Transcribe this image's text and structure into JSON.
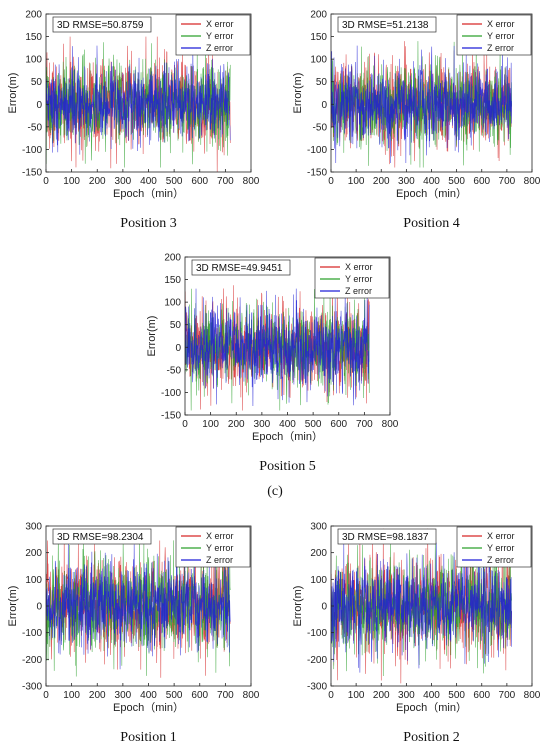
{
  "figure": {
    "label": "(c)"
  },
  "chart_data": [
    {
      "type": "line",
      "caption": "Position 3",
      "rmse_label": "3D RMSE=50.8759",
      "xlabel": "Epoch（min）",
      "ylabel": "Error(m)",
      "xlim": [
        0,
        800
      ],
      "ylim": [
        -150,
        200
      ],
      "xticks": [
        "0",
        "100",
        "200",
        "300",
        "400",
        "500",
        "600",
        "700",
        "800"
      ],
      "yticks": [
        "-150",
        "-100",
        "-50",
        "0",
        "50",
        "100",
        "150",
        "200"
      ],
      "legend_position": "top-right",
      "series": [
        {
          "name": "X error",
          "color": "#d62728",
          "amplitude": 50,
          "peak": 150,
          "points": 720
        },
        {
          "name": "Y error",
          "color": "#2ca02c",
          "amplitude": 50,
          "peak": 140,
          "points": 720
        },
        {
          "name": "Z error",
          "color": "#1f1fd6",
          "amplitude": 45,
          "peak": 130,
          "points": 720
        }
      ]
    },
    {
      "type": "line",
      "caption": "Position 4",
      "rmse_label": "3D RMSE=51.2138",
      "xlabel": "Epoch（min）",
      "ylabel": "Error(m)",
      "xlim": [
        0,
        800
      ],
      "ylim": [
        -150,
        200
      ],
      "xticks": [
        "0",
        "100",
        "200",
        "300",
        "400",
        "500",
        "600",
        "700",
        "800"
      ],
      "yticks": [
        "-150",
        "-100",
        "-50",
        "0",
        "50",
        "100",
        "150",
        "200"
      ],
      "legend_position": "top-right",
      "series": [
        {
          "name": "X error",
          "color": "#d62728",
          "amplitude": 50,
          "peak": 140,
          "points": 720
        },
        {
          "name": "Y error",
          "color": "#2ca02c",
          "amplitude": 50,
          "peak": 140,
          "points": 720
        },
        {
          "name": "Z error",
          "color": "#1f1fd6",
          "amplitude": 45,
          "peak": 130,
          "points": 720
        }
      ]
    },
    {
      "type": "line",
      "caption": "Position 5",
      "rmse_label": "3D RMSE=49.9451",
      "xlabel": "Epoch（min）",
      "ylabel": "Error(m)",
      "xlim": [
        0,
        800
      ],
      "ylim": [
        -150,
        200
      ],
      "xticks": [
        "0",
        "100",
        "200",
        "300",
        "400",
        "500",
        "600",
        "700",
        "800"
      ],
      "yticks": [
        "-150",
        "-100",
        "-50",
        "0",
        "50",
        "100",
        "150",
        "200"
      ],
      "legend_position": "top-right",
      "series": [
        {
          "name": "X error",
          "color": "#d62728",
          "amplitude": 48,
          "peak": 140,
          "points": 720
        },
        {
          "name": "Y error",
          "color": "#2ca02c",
          "amplitude": 48,
          "peak": 140,
          "points": 720
        },
        {
          "name": "Z error",
          "color": "#1f1fd6",
          "amplitude": 45,
          "peak": 130,
          "points": 720
        }
      ]
    },
    {
      "type": "line",
      "caption": "Position 1",
      "rmse_label": "3D RMSE=98.2304",
      "xlabel": "Epoch（min）",
      "ylabel": "Error(m)",
      "xlim": [
        0,
        800
      ],
      "ylim": [
        -300,
        300
      ],
      "xticks": [
        "0",
        "100",
        "200",
        "300",
        "400",
        "500",
        "600",
        "700",
        "800"
      ],
      "yticks": [
        "-300",
        "-200",
        "-100",
        "0",
        "100",
        "200",
        "300"
      ],
      "legend_position": "top-right",
      "series": [
        {
          "name": "X error",
          "color": "#d62728",
          "amplitude": 95,
          "peak": 290,
          "points": 720
        },
        {
          "name": "Y error",
          "color": "#2ca02c",
          "amplitude": 95,
          "peak": 280,
          "points": 720
        },
        {
          "name": "Z error",
          "color": "#1f1fd6",
          "amplitude": 85,
          "peak": 260,
          "points": 720
        }
      ]
    },
    {
      "type": "line",
      "caption": "Position 2",
      "rmse_label": "3D RMSE=98.1837",
      "xlabel": "Epoch（min）",
      "ylabel": "Error(m)",
      "xlim": [
        0,
        800
      ],
      "ylim": [
        -300,
        300
      ],
      "xticks": [
        "0",
        "100",
        "200",
        "300",
        "400",
        "500",
        "600",
        "700",
        "800"
      ],
      "yticks": [
        "-300",
        "-200",
        "-100",
        "0",
        "100",
        "200",
        "300"
      ],
      "legend_position": "top-right",
      "series": [
        {
          "name": "X error",
          "color": "#d62728",
          "amplitude": 95,
          "peak": 290,
          "points": 720
        },
        {
          "name": "Y error",
          "color": "#2ca02c",
          "amplitude": 95,
          "peak": 280,
          "points": 720
        },
        {
          "name": "Z error",
          "color": "#1f1fd6",
          "amplitude": 85,
          "peak": 260,
          "points": 720
        }
      ]
    }
  ]
}
